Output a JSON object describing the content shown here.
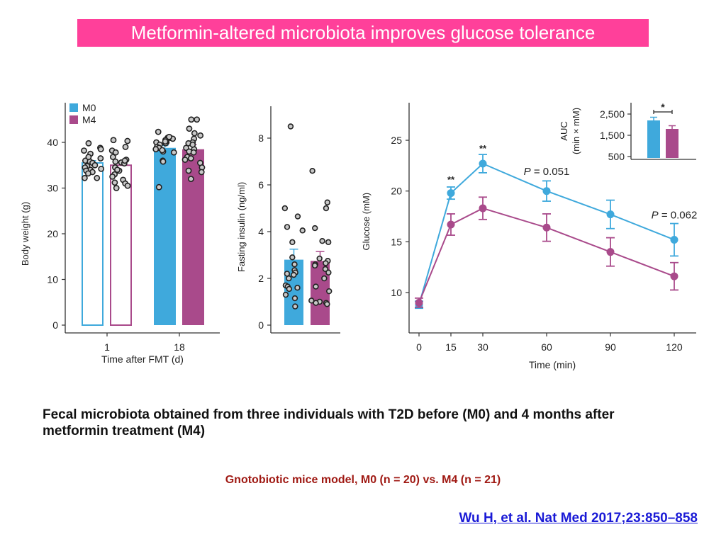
{
  "slide": {
    "title": "Metformin-altered microbiota improves glucose tolerance",
    "description": "Fecal microbiota obtained from three individuals with T2D before (M0) and 4 months after metformin treatment (M4)",
    "model_note": "Gnotobiotic mice model, M0 (n = 20) vs. M4 (n = 21)",
    "citation": "Wu H, et al. Nat Med 2017;23:850–858"
  },
  "colors": {
    "M0": "#3fa9dc",
    "M4": "#a94a8b",
    "banner": "#ff409a",
    "model_note": "#a01a14",
    "citation": "#1a1ad6"
  },
  "chart_data": [
    {
      "type": "bar",
      "id": "body_weight",
      "ylabel": "Body weight (g)",
      "xlabel": "Time after FMT (d)",
      "categories": [
        "1",
        "18"
      ],
      "ylim": [
        0,
        48
      ],
      "yticks": [
        0,
        10,
        20,
        30,
        40
      ],
      "legend": {
        "position": "top-left",
        "entries": [
          "M0",
          "M4"
        ]
      },
      "series": [
        {
          "name": "M0",
          "values": [
            35.5,
            38.8
          ],
          "errors": [
            0.5,
            0.5
          ],
          "filled": [
            false,
            true
          ],
          "points": [
            [
              38.8,
              38.5,
              38.2,
              37.5,
              36.5,
              36.0,
              35.8,
              35.5,
              35.0,
              34.8,
              34.5,
              34.2,
              34.0,
              33.8,
              33.5,
              33.2,
              32.2,
              32.2,
              39.8,
              36.8
            ],
            [
              42.3,
              41.0,
              41.0,
              40.8,
              40.5,
              40.0,
              40.0,
              39.8,
              39.5,
              39.0,
              38.8,
              38.5,
              38.0,
              37.8,
              36.0,
              35.8,
              30.2,
              41.2,
              40.2,
              38.3
            ]
          ]
        },
        {
          "name": "M4",
          "values": [
            35.0,
            38.5
          ],
          "errors": [
            0.6,
            1.0
          ],
          "filled": [
            false,
            true
          ],
          "points": [
            [
              40.5,
              40.3,
              39.0,
              38.2,
              37.8,
              36.8,
              36.2,
              35.8,
              35.6,
              35.4,
              34.5,
              33.8,
              33.0,
              31.8,
              31.2,
              31.0,
              30.5,
              30.0,
              36.0,
              34.0,
              32.5
            ],
            [
              45.0,
              45.0,
              43.0,
              42.0,
              41.5,
              40.8,
              40.0,
              39.8,
              38.8,
              38.5,
              38.0,
              37.8,
              36.8,
              36.5,
              36.2,
              35.5,
              34.5,
              33.8,
              33.5,
              32.0,
              39.5
            ]
          ]
        }
      ]
    },
    {
      "type": "bar",
      "id": "fasting_insulin",
      "ylabel": "Fasting insulin (ng/ml)",
      "xlabel": "",
      "categories": [
        ""
      ],
      "ylim": [
        0,
        9.5
      ],
      "yticks": [
        0,
        2,
        4,
        6,
        8
      ],
      "series": [
        {
          "name": "M0",
          "values": [
            2.8
          ],
          "errors": [
            0.45
          ],
          "points": [
            [
              8.5,
              5.0,
              4.65,
              4.2,
              4.05,
              3.55,
              2.9,
              2.6,
              2.35,
              2.25,
              2.2,
              2.15,
              1.7,
              1.65,
              1.6,
              1.55,
              1.3,
              1.15,
              0.8,
              2.0
            ]
          ]
        },
        {
          "name": "M4",
          "values": [
            2.75
          ],
          "errors": [
            0.4
          ],
          "points": [
            [
              6.6,
              5.25,
              5.0,
              4.15,
              3.55,
              3.6,
              2.85,
              2.75,
              2.65,
              2.6,
              2.55,
              2.4,
              2.25,
              1.65,
              1.45,
              1.05,
              1.0,
              0.95,
              0.9,
              0.95,
              2.0
            ]
          ]
        }
      ]
    },
    {
      "type": "line",
      "id": "glucose_tolerance",
      "ylabel": "Glucose (mM)",
      "xlabel": "Time (min)",
      "x": [
        0,
        15,
        30,
        60,
        90,
        120
      ],
      "xticks": [
        0,
        15,
        30,
        60,
        90,
        120
      ],
      "ylim": [
        7.5,
        28.5
      ],
      "yticks": [
        10,
        15,
        20,
        25
      ],
      "xlim": [
        -5,
        125
      ],
      "series": [
        {
          "name": "M0",
          "values": [
            8.8,
            19.8,
            22.7,
            20.0,
            17.7,
            15.2
          ],
          "errors": [
            0.35,
            0.6,
            0.9,
            1.0,
            1.4,
            1.6
          ]
        },
        {
          "name": "M4",
          "values": [
            9.0,
            16.7,
            18.3,
            16.4,
            14.0,
            11.6
          ],
          "errors": [
            0.45,
            1.05,
            1.1,
            1.35,
            1.4,
            1.35
          ]
        }
      ],
      "annotations": [
        {
          "text": "**",
          "x": 15,
          "y": 20.8
        },
        {
          "text": "**",
          "x": 30,
          "y": 23.9
        },
        {
          "text": "P = 0.051",
          "x": 60,
          "y": 21.6
        },
        {
          "text": "P = 0.062",
          "x": 120,
          "y": 17.3
        }
      ]
    },
    {
      "type": "bar",
      "id": "auc_inset",
      "ylabel": "AUC",
      "ylabel2": "(min × mM)",
      "categories": [
        "M0",
        "M4"
      ],
      "ylim": [
        400,
        3000
      ],
      "yticks": [
        500,
        1500,
        2500
      ],
      "ytick_labels": [
        "500",
        "1,500",
        "2,500"
      ],
      "values": [
        2200,
        1800
      ],
      "errors": [
        150,
        150
      ],
      "significance": "*"
    }
  ]
}
